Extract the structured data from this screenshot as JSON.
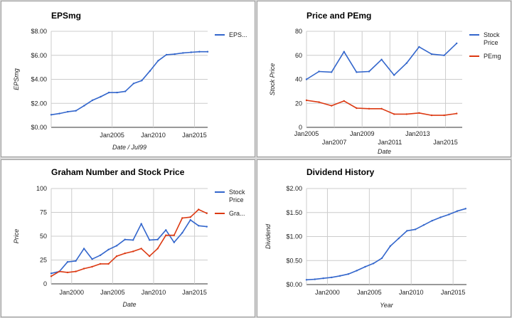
{
  "chart_data": [
    {
      "type": "line",
      "title": "EPSmg",
      "xlabel": "Date / Jul99",
      "ylabel": "EPSmg",
      "ylim": [
        0,
        8
      ],
      "xlim": [
        1997.6,
        2016.6
      ],
      "yticks": [
        0,
        2,
        4,
        6,
        8
      ],
      "ytick_labels": [
        "$0.00",
        "$2.00",
        "$4.00",
        "$6.00",
        "$8.00"
      ],
      "xticks": [
        2005,
        2010,
        2015
      ],
      "xtick_labels": [
        "Jan2005",
        "Jan2010",
        "Jan2015"
      ],
      "grid": true,
      "legend": "right",
      "series": [
        {
          "name": "EPS...",
          "color": "#3366cc",
          "x": [
            1997.6,
            1998.6,
            1999.6,
            2000.6,
            2001.6,
            2002.6,
            2003.6,
            2004.6,
            2005.6,
            2006.6,
            2007.6,
            2008.6,
            2009.6,
            2010.6,
            2011.6,
            2012.6,
            2013.6,
            2014.6,
            2015.6,
            2016.6
          ],
          "values": [
            1.05,
            1.15,
            1.3,
            1.38,
            1.8,
            2.25,
            2.55,
            2.9,
            2.9,
            3.0,
            3.65,
            3.9,
            4.7,
            5.55,
            6.05,
            6.1,
            6.2,
            6.25,
            6.3,
            6.3
          ]
        }
      ]
    },
    {
      "type": "line",
      "title": "Price and PEmg",
      "xlabel": "Date",
      "ylabel": "Stock Price",
      "ylim": [
        0,
        80
      ],
      "xlim": [
        2005,
        2016.2
      ],
      "yticks": [
        0,
        20,
        40,
        60,
        80
      ],
      "ytick_labels": [
        "0",
        "20",
        "40",
        "60",
        "80"
      ],
      "xticks": [
        2005,
        2007,
        2009,
        2011,
        2013,
        2015
      ],
      "xtick_labels": [
        "Jan2005",
        "Jan2007",
        "Jan2009",
        "Jan2011",
        "Jan2013",
        "Jan2015"
      ],
      "grid": true,
      "legend": "right",
      "series": [
        {
          "name": "Stock Price",
          "color": "#3366cc",
          "x": [
            2005,
            2005.9,
            2006.8,
            2007.7,
            2008.6,
            2009.5,
            2010.4,
            2011.3,
            2012.2,
            2013.1,
            2014,
            2014.9,
            2015.8
          ],
          "values": [
            40,
            46.5,
            46,
            63,
            46,
            46.5,
            56.5,
            43.5,
            53.5,
            67,
            61,
            60,
            70
          ]
        },
        {
          "name": "PEmg",
          "color": "#dc3912",
          "x": [
            2005,
            2005.9,
            2006.8,
            2007.7,
            2008.6,
            2009.5,
            2010.4,
            2011.3,
            2012.2,
            2013.1,
            2014,
            2014.9,
            2015.8
          ],
          "values": [
            22.5,
            21,
            18,
            22,
            16,
            15.5,
            15.5,
            11,
            11,
            12,
            10,
            10,
            11.5
          ]
        }
      ]
    },
    {
      "type": "line",
      "title": "Graham Number and Stock Price",
      "xlabel": "Date",
      "ylabel": "Price",
      "ylim": [
        0,
        100
      ],
      "xlim": [
        1997.5,
        2016.6
      ],
      "yticks": [
        0,
        25,
        50,
        75,
        100
      ],
      "ytick_labels": [
        "0",
        "25",
        "50",
        "75",
        "100"
      ],
      "xticks": [
        2000,
        2005,
        2010,
        2015
      ],
      "xtick_labels": [
        "Jan2000",
        "Jan2005",
        "Jan2010",
        "Jan2015"
      ],
      "grid": true,
      "legend": "right",
      "series": [
        {
          "name": "Stock Price",
          "color": "#3366cc",
          "x": [
            1997.5,
            1998.5,
            1999.5,
            2000.5,
            2001.5,
            2002.5,
            2003.5,
            2004.5,
            2005.5,
            2006.5,
            2007.5,
            2008.5,
            2009.5,
            2010.5,
            2011.5,
            2012.5,
            2013.5,
            2014.5,
            2015.5,
            2016.5
          ],
          "values": [
            11,
            13,
            23,
            24,
            37,
            26,
            30,
            36,
            40,
            46.5,
            46,
            63,
            46,
            46.5,
            56.5,
            43.5,
            53.5,
            67,
            61,
            60
          ]
        },
        {
          "name": "Gra...",
          "color": "#dc3912",
          "x": [
            1997.5,
            1998.5,
            1999.5,
            2000.5,
            2001.5,
            2002.5,
            2003.5,
            2004.5,
            2005.5,
            2006.5,
            2007.5,
            2008.5,
            2009.5,
            2010.5,
            2011.5,
            2012.5,
            2013.5,
            2014.5,
            2015.5,
            2016.5
          ],
          "values": [
            8,
            13,
            12,
            13,
            16,
            18,
            21,
            21,
            29,
            32,
            34,
            37,
            29,
            37,
            51,
            51,
            69,
            70,
            78,
            74
          ]
        }
      ]
    },
    {
      "type": "line",
      "title": "Dividend History",
      "xlabel": "Year",
      "ylabel": "Dividend",
      "ylim": [
        0,
        2
      ],
      "xlim": [
        1997.5,
        2016.6
      ],
      "yticks": [
        0,
        0.5,
        1,
        1.5,
        2
      ],
      "ytick_labels": [
        "$0.00",
        "$0.50",
        "$1.00",
        "$1.50",
        "$2.00"
      ],
      "xticks": [
        2000,
        2005,
        2010,
        2015
      ],
      "xtick_labels": [
        "Jan2000",
        "Jan2005",
        "Jan2010",
        "Jan2015"
      ],
      "grid": true,
      "legend": "none",
      "series": [
        {
          "name": "",
          "color": "#3366cc",
          "x": [
            1997.5,
            1998.5,
            1999.5,
            2000.5,
            2001.5,
            2002.5,
            2003.5,
            2004.5,
            2005.5,
            2006.5,
            2007.5,
            2008.5,
            2009.5,
            2010.5,
            2011.5,
            2012.5,
            2013.5,
            2014.5,
            2015.5,
            2016.5
          ],
          "values": [
            0.1,
            0.11,
            0.13,
            0.15,
            0.18,
            0.22,
            0.29,
            0.37,
            0.44,
            0.55,
            0.8,
            0.96,
            1.12,
            1.15,
            1.24,
            1.33,
            1.4,
            1.46,
            1.53,
            1.58
          ]
        }
      ]
    }
  ]
}
